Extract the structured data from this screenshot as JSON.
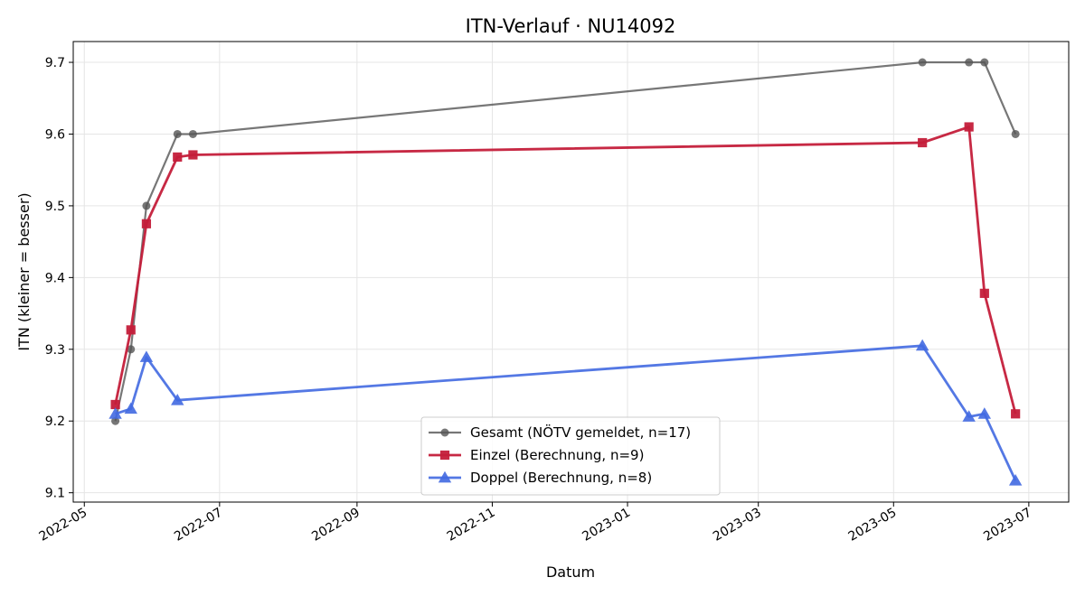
{
  "chart_data": {
    "type": "line",
    "title": "ITN-Verlauf · NU14092",
    "xlabel": "Datum",
    "ylabel": "ITN  (kleiner = besser)",
    "x_type": "date",
    "xlim": [
      "2022-04-26",
      "2023-07-19"
    ],
    "ylim": [
      9.087,
      9.729
    ],
    "x_ticks": [
      "2022-05",
      "2022-07",
      "2022-09",
      "2022-11",
      "2023-01",
      "2023-03",
      "2023-05",
      "2023-07"
    ],
    "x_tick_dates": [
      "2022-05-01",
      "2022-07-01",
      "2022-09-01",
      "2022-11-01",
      "2023-01-01",
      "2023-03-01",
      "2023-05-01",
      "2023-07-01"
    ],
    "y_ticks": [
      "9.1",
      "9.2",
      "9.3",
      "9.4",
      "9.5",
      "9.6",
      "9.7"
    ],
    "y_tick_values": [
      9.1,
      9.2,
      9.3,
      9.4,
      9.5,
      9.6,
      9.7
    ],
    "grid": true,
    "legend_position": "bottom-center",
    "series": [
      {
        "name": "Gesamt (NÖTV gemeldet, n=17)",
        "color": "#555555",
        "marker": "circle",
        "x": [
          "2022-05-15",
          "2022-05-22",
          "2022-05-29",
          "2022-06-12",
          "2022-06-19",
          "2023-05-14",
          "2023-06-04",
          "2023-06-11",
          "2023-06-25"
        ],
        "y": [
          9.2,
          9.3,
          9.5,
          9.6,
          9.6,
          9.7,
          9.7,
          9.7,
          9.6
        ]
      },
      {
        "name": "Einzel (Berechnung, n=9)",
        "color": "#c41e3a",
        "marker": "square",
        "x": [
          "2022-05-15",
          "2022-05-22",
          "2022-05-29",
          "2022-06-12",
          "2022-06-19",
          "2023-05-14",
          "2023-06-04",
          "2023-06-11",
          "2023-06-25"
        ],
        "y": [
          9.223,
          9.327,
          9.475,
          9.568,
          9.571,
          9.588,
          9.61,
          9.378,
          9.21
        ]
      },
      {
        "name": "Doppel (Berechnung, n=8)",
        "color": "#4169e1",
        "marker": "triangle",
        "x": [
          "2022-05-15",
          "2022-05-22",
          "2022-05-29",
          "2022-06-12",
          "2023-05-14",
          "2023-06-04",
          "2023-06-11",
          "2023-06-25"
        ],
        "y": [
          9.21,
          9.217,
          9.289,
          9.229,
          9.305,
          9.206,
          9.21,
          9.117
        ]
      }
    ]
  }
}
